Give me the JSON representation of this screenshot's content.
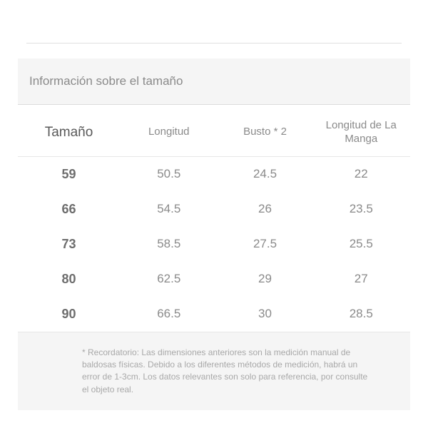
{
  "section_title": "Información sobre el tamaño",
  "table": {
    "type": "table",
    "columns": [
      {
        "label": "Tamaño",
        "width_pct": 26,
        "is_size_col": true,
        "header_fontsize": 19,
        "header_color": "#595959"
      },
      {
        "label": "Longitud",
        "width_pct": 25,
        "is_size_col": false,
        "header_fontsize": 15,
        "header_color": "#8a8a8a"
      },
      {
        "label": "Busto * 2",
        "width_pct": 24,
        "is_size_col": false,
        "header_fontsize": 15,
        "header_color": "#8a8a8a"
      },
      {
        "label": "Longitud de La Manga",
        "width_pct": 25,
        "is_size_col": false,
        "header_fontsize": 15,
        "header_color": "#8a8a8a"
      }
    ],
    "rows": [
      [
        "59",
        "50.5",
        "24.5",
        "22"
      ],
      [
        "66",
        "54.5",
        "26",
        "23.5"
      ],
      [
        "73",
        "58.5",
        "27.5",
        "25.5"
      ],
      [
        "80",
        "62.5",
        "29",
        "27"
      ],
      [
        "90",
        "66.5",
        "30",
        "28.5"
      ]
    ],
    "cell_fontsize": 17,
    "cell_color": "#8a8a8a",
    "size_cell_fontsize": 18,
    "size_cell_color": "#6d6d6d",
    "size_cell_weight": 700,
    "border_color": "#e6e6e6",
    "row_padding_v": 14
  },
  "footnote": "* Recordatorio: Las dimensiones anteriores son la medición manual de baldosas físicas. Debido a los diferentes métodos de medición, habrá un error de 1-3cm. Los datos relevantes son solo para referencia, por consulte el objeto real.",
  "colors": {
    "page_bg": "#ffffff",
    "section_bg": "#f5f5f5",
    "divider": "#e0e0e0",
    "text_muted": "#8a8a8a",
    "text_strong": "#595959",
    "footnote_text": "#a8a8a8"
  }
}
